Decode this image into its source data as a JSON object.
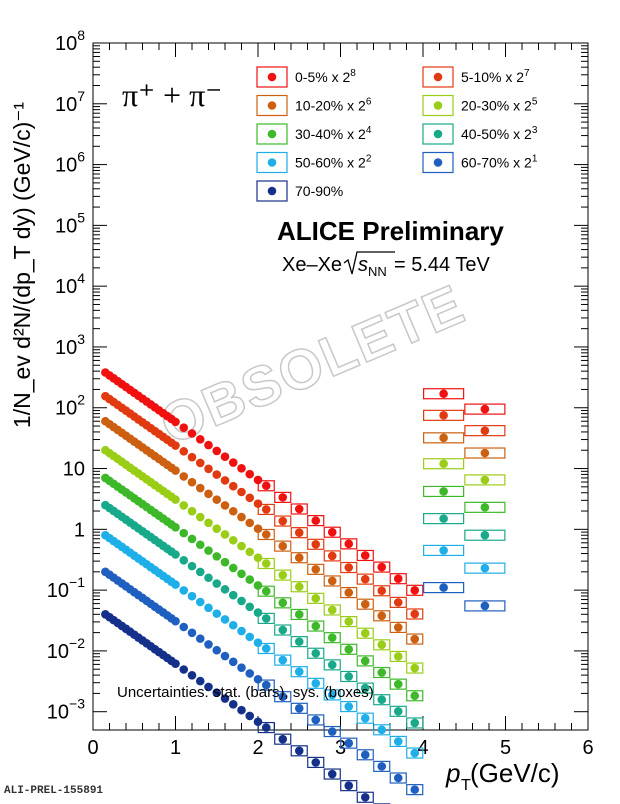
{
  "chart_data": {
    "type": "scatter",
    "ylog": true,
    "xlim": [
      0,
      6
    ],
    "ylim": [
      0.0005,
      100000000
    ],
    "x_ticks": [
      "0",
      "1",
      "2",
      "3",
      "4",
      "5",
      "6"
    ],
    "y_ticks": [
      {
        "v": 100000000,
        "b": "10",
        "e": "8"
      },
      {
        "v": 10000000,
        "b": "10",
        "e": "7"
      },
      {
        "v": 1000000,
        "b": "10",
        "e": "6"
      },
      {
        "v": 100000,
        "b": "10",
        "e": "5"
      },
      {
        "v": 10000,
        "b": "10",
        "e": "4"
      },
      {
        "v": 1000,
        "b": "10",
        "e": "3"
      },
      {
        "v": 100,
        "b": "10",
        "e": "2"
      },
      {
        "v": 10,
        "b": "10",
        "e": ""
      },
      {
        "v": 1,
        "b": "1",
        "e": ""
      },
      {
        "v": 0.1,
        "b": "10",
        "e": "−1"
      },
      {
        "v": 0.01,
        "b": "10",
        "e": "−2"
      },
      {
        "v": 0.001,
        "b": "10",
        "e": "−3"
      }
    ],
    "particle_label": "π⁺ + π⁻",
    "collab": "ALICE Preliminary",
    "system_prefix": "Xe–Xe",
    "system_sqrt": "s",
    "system_sub": "NN",
    "system_suffix": " = 5.44 TeV",
    "uncert_note": "Uncertainties: stat. (bars), sys. (boxes)",
    "watermark": "OBSOLETE",
    "series": [
      {
        "name": "0-5% x 2",
        "sup": "8",
        "color": "#f01010",
        "y0": 380,
        "hi": [
          95,
          170
        ]
      },
      {
        "name": "5-10% x 2",
        "sup": "7",
        "color": "#e23a10",
        "y0": 155,
        "hi": [
          42,
          75
        ]
      },
      {
        "name": "10-20% x 2",
        "sup": "6",
        "color": "#cc6010",
        "y0": 60,
        "hi": [
          18,
          32
        ]
      },
      {
        "name": "20-30% x 2",
        "sup": "5",
        "color": "#9acd16",
        "y0": 20,
        "hi": [
          6.5,
          12
        ]
      },
      {
        "name": "30-40% x 2",
        "sup": "4",
        "color": "#3cb829",
        "y0": 7,
        "hi": [
          2.3,
          4.2
        ]
      },
      {
        "name": "40-50% x 2",
        "sup": "3",
        "color": "#18a98a",
        "y0": 2.5,
        "hi": [
          0.8,
          1.5
        ]
      },
      {
        "name": "50-60% x 2",
        "sup": "2",
        "color": "#1eaee8",
        "y0": 0.8,
        "hi": [
          0.23,
          0.45
        ]
      },
      {
        "name": "60-70% x 2",
        "sup": "1",
        "color": "#1f5fc0",
        "y0": 0.2,
        "hi": [
          0.055,
          0.11
        ]
      },
      {
        "name": "70-90%",
        "sup": "",
        "color": "#15308a",
        "y0": 0.04,
        "hi": []
      }
    ],
    "low_pt": [
      0.15,
      0.2,
      0.25,
      0.3,
      0.35,
      0.4,
      0.45,
      0.5,
      0.55,
      0.6,
      0.65,
      0.7,
      0.75,
      0.8,
      0.85,
      0.9,
      0.95,
      1.0,
      1.1,
      1.2,
      1.3,
      1.4,
      1.5,
      1.6,
      1.7,
      1.8,
      1.9,
      2.0
    ],
    "box_pt": [
      2.1,
      2.3,
      2.5,
      2.7,
      2.9,
      3.1,
      3.3,
      3.5,
      3.7,
      3.9
    ],
    "hi_pt": [
      4.25,
      4.75
    ],
    "slope": 2.2,
    "xlabel_main": "p",
    "xlabel_sub": "T",
    "xlabel_unit": " (GeV/c)",
    "ylabel": "1/N_ev d²N/(dp_T dy) (GeV/c)⁻¹",
    "footer": "ALI-PREL-155891"
  }
}
